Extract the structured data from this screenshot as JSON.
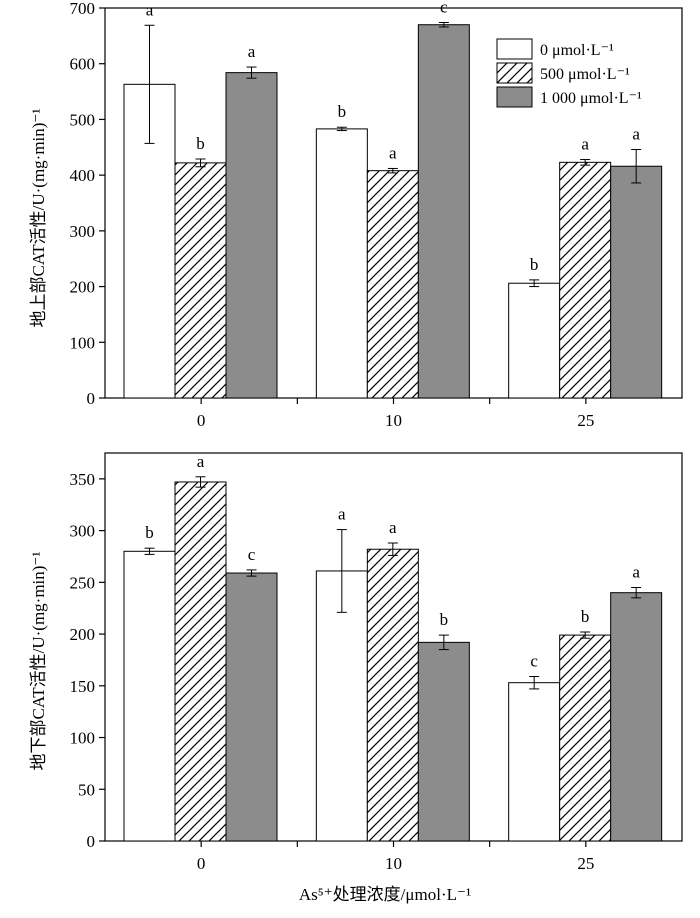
{
  "figure": {
    "x_axis_label": "As⁵⁺处理浓度/μmol·L⁻¹"
  },
  "legend": {
    "entries": [
      "0 μmol·L⁻¹",
      "500 μmol·L⁻¹",
      "1 000 μmol·L⁻¹"
    ]
  },
  "colors": {
    "series_0": "#ffffff",
    "series_500": "hatch-diagonal",
    "series_1000": "#8c8c8c",
    "stroke": "#000000"
  },
  "chart_data": [
    {
      "type": "bar",
      "title": "",
      "ylabel": "地上部CAT活性/U·(mg·min)⁻¹",
      "xlabel": "",
      "categories": [
        "0",
        "10",
        "25"
      ],
      "ylim": [
        0,
        700
      ],
      "yticks": [
        0,
        100,
        200,
        300,
        400,
        500,
        600,
        700
      ],
      "grid": false,
      "legend_position": "top-right",
      "series": [
        {
          "name": "0 μmol·L⁻¹",
          "values": [
            563,
            483,
            206
          ],
          "errors": [
            106,
            3,
            6
          ],
          "letters": [
            "a",
            "b",
            "b"
          ]
        },
        {
          "name": "500 μmol·L⁻¹",
          "values": [
            422,
            408,
            423
          ],
          "errors": [
            7,
            4,
            5
          ],
          "letters": [
            "b",
            "a",
            "a"
          ]
        },
        {
          "name": "1 000 μmol·L⁻¹",
          "values": [
            584,
            670,
            416
          ],
          "errors": [
            10,
            4,
            30
          ],
          "letters": [
            "a",
            "c",
            "a"
          ]
        }
      ]
    },
    {
      "type": "bar",
      "title": "",
      "ylabel": "地下部CAT活性/U·(mg·min)⁻¹",
      "xlabel": "As⁵⁺处理浓度/μmol·L⁻¹",
      "categories": [
        "0",
        "10",
        "25"
      ],
      "ylim": [
        0,
        375
      ],
      "yticks": [
        0,
        50,
        100,
        150,
        200,
        250,
        300,
        350
      ],
      "grid": false,
      "series": [
        {
          "name": "0 μmol·L⁻¹",
          "values": [
            280,
            261,
            153
          ],
          "errors": [
            3,
            40,
            6
          ],
          "letters": [
            "b",
            "a",
            "c"
          ]
        },
        {
          "name": "500 μmol·L⁻¹",
          "values": [
            347,
            282,
            199
          ],
          "errors": [
            5,
            6,
            3
          ],
          "letters": [
            "a",
            "a",
            "b"
          ]
        },
        {
          "name": "1 000 μmol·L⁻¹",
          "values": [
            259,
            192,
            240
          ],
          "errors": [
            3,
            7,
            5
          ],
          "letters": [
            "c",
            "b",
            "a"
          ]
        }
      ]
    }
  ]
}
